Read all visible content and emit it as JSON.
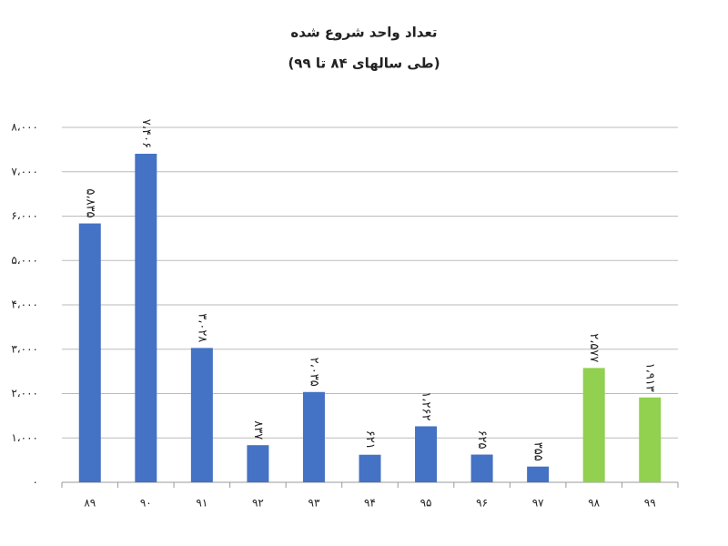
{
  "chart_data": {
    "type": "bar",
    "title": "تعداد واحد شروع شده",
    "subtitle": "(طی سالهای ۸۴ تا ۹۹)",
    "categories": [
      "۸۹",
      "۹۰",
      "۹۱",
      "۹۲",
      "۹۳",
      "۹۴",
      "۹۵",
      "۹۶",
      "۹۷",
      "۹۸",
      "۹۹"
    ],
    "values": [
      5835,
      7406,
      3028,
      837,
      2035,
      621,
      1262,
      625,
      355,
      2577,
      1913
    ],
    "value_labels": [
      "۵،۸۳۵",
      "۷،۴۰۶",
      "۳،۰۲۸",
      "۸۳۷",
      "۲،۰۳۵",
      "۶۲۱",
      "۱،۲۶۲",
      "۶۲۵",
      "۳۵۵",
      "۲،۵۷۷",
      "۱،۹۱۳"
    ],
    "colors": [
      "#4472c4",
      "#4472c4",
      "#4472c4",
      "#4472c4",
      "#4472c4",
      "#4472c4",
      "#4472c4",
      "#4472c4",
      "#4472c4",
      "#92d050",
      "#92d050"
    ],
    "ylim": [
      0,
      8000
    ],
    "yticks": [
      {
        "value": 0,
        "label": "۰"
      },
      {
        "value": 1000,
        "label": "۱،۰۰۰"
      },
      {
        "value": 2000,
        "label": "۲،۰۰۰"
      },
      {
        "value": 3000,
        "label": "۳،۰۰۰"
      },
      {
        "value": 4000,
        "label": "۴،۰۰۰"
      },
      {
        "value": 5000,
        "label": "۵،۰۰۰"
      },
      {
        "value": 6000,
        "label": "۶،۰۰۰"
      },
      {
        "value": 7000,
        "label": "۷،۰۰۰"
      },
      {
        "value": 8000,
        "label": "۸،۰۰۰"
      }
    ],
    "grid": true
  }
}
